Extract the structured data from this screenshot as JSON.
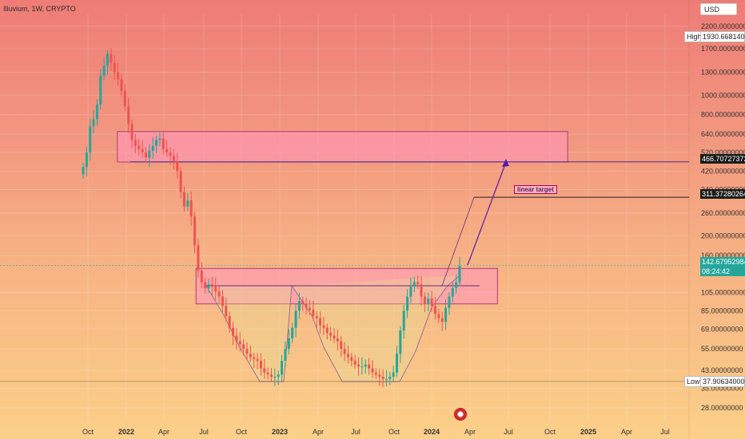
{
  "chart_data": {
    "type": "candlestick",
    "title": "Illuvium, 1W, CRYPTO",
    "currency": "USD",
    "scale": "log",
    "x_ticks": [
      "Oct",
      "2022",
      "Apr",
      "Jul",
      "Oct",
      "2023",
      "Apr",
      "Jul",
      "Oct",
      "2024",
      "Apr",
      "Jul",
      "Oct",
      "2025",
      "Apr",
      "Jul"
    ],
    "y_ticks": [
      2200,
      1700,
      1300,
      1000,
      800,
      640,
      520,
      420,
      340,
      260,
      200,
      160,
      105,
      85,
      69,
      55,
      43,
      35,
      28
    ],
    "y_tick_labels": [
      "2200.00000000",
      "1700.00000000",
      "1300.00000000",
      "1000.00000000",
      "800.00000000",
      "640.00000000",
      "520.00000000",
      "420.00000000",
      "340.00000000",
      "260.00000000",
      "200.00000000",
      "160.00000000",
      "105.00000000",
      "85.00000000",
      "69.00000000",
      "55.00000000",
      "43.00000000",
      "35.00000000",
      "28.00000000"
    ],
    "ylim": [
      24,
      2500
    ],
    "high": {
      "label": "High",
      "value": "1930.66814000"
    },
    "low": {
      "label": "Low",
      "value": "37.90634000"
    },
    "current_price": "142.67952984",
    "countdown": "08:24:42",
    "level_upper": "466.70727372",
    "level_target": "311.37280264",
    "annotation": "linear target",
    "zones": [
      {
        "from_date": "2021-12-10",
        "to_date": "2024-11-15",
        "low": 466,
        "high": 660
      },
      {
        "from_date": "2022-06-15",
        "to_date": "2024-06-01",
        "low": 92,
        "high": 138
      }
    ],
    "closes": [
      440,
      520,
      700,
      760,
      900,
      1250,
      1400,
      1600,
      1450,
      1300,
      1200,
      1050,
      880,
      720,
      600,
      560,
      540,
      520,
      490,
      530,
      560,
      600,
      610,
      540,
      520,
      500,
      470,
      420,
      330,
      280,
      300,
      250,
      180,
      135,
      118,
      110,
      115,
      112,
      106,
      100,
      90,
      80,
      70,
      64,
      60,
      58,
      55,
      52,
      50,
      49,
      48,
      44,
      42,
      41,
      40,
      40,
      41,
      48,
      55,
      62,
      70,
      85,
      95,
      92,
      88,
      86,
      80,
      78,
      72,
      70,
      66,
      64,
      62,
      60,
      55,
      52,
      50,
      48,
      46,
      45,
      45,
      46,
      44,
      42,
      41,
      40,
      39,
      39,
      40,
      42,
      52,
      68,
      85,
      100,
      112,
      118,
      115,
      100,
      92,
      98,
      90,
      82,
      78,
      75,
      88,
      100,
      110,
      118,
      142
    ]
  }
}
